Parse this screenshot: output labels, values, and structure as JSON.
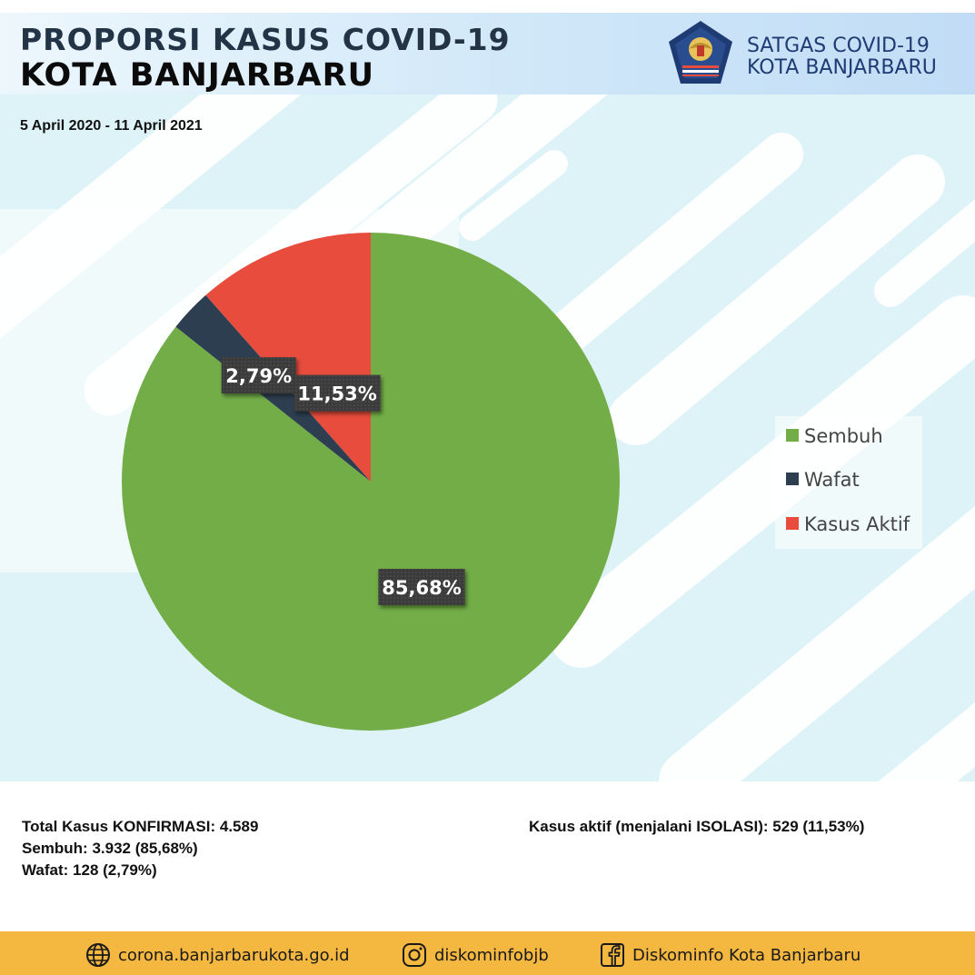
{
  "header": {
    "title_line1": "PROPORSI KASUS COVID-19",
    "title_line2": "KOTA BANJARBARU",
    "date_range": "5 April 2020 - 11 April 2021",
    "org_line1": "SATGAS COVID-19",
    "org_line2": "KOTA BANJARBARU",
    "logo_icon": "satgas-emblem-icon"
  },
  "chart_data": {
    "type": "pie",
    "categories": [
      "Sembuh",
      "Wafat",
      "Kasus Aktif"
    ],
    "values": [
      85.68,
      2.79,
      11.53
    ],
    "data_labels": [
      "85,68%",
      "2,79%",
      "11,53%"
    ],
    "colors": [
      "#72ad47",
      "#2c3e50",
      "#e74c3c"
    ],
    "legend_position": "right"
  },
  "stats": {
    "total": "Total Kasus KONFIRMASI: 4.589",
    "sembuh": "Sembuh: 3.932 (85,68%)",
    "wafat": "Wafat: 128 (2,79%)",
    "aktif": "Kasus aktif (menjalani ISOLASI): 529 (11,53%)"
  },
  "footer": {
    "website": "corona.banjarbarukota.go.id",
    "website_icon": "globe-icon",
    "instagram": "diskominfobjb",
    "instagram_icon": "instagram-icon",
    "facebook": "Diskominfo Kota Banjarbaru",
    "facebook_icon": "facebook-icon"
  },
  "theme": {
    "accent_footer": "#f4b73f",
    "title_color": "#243447"
  }
}
